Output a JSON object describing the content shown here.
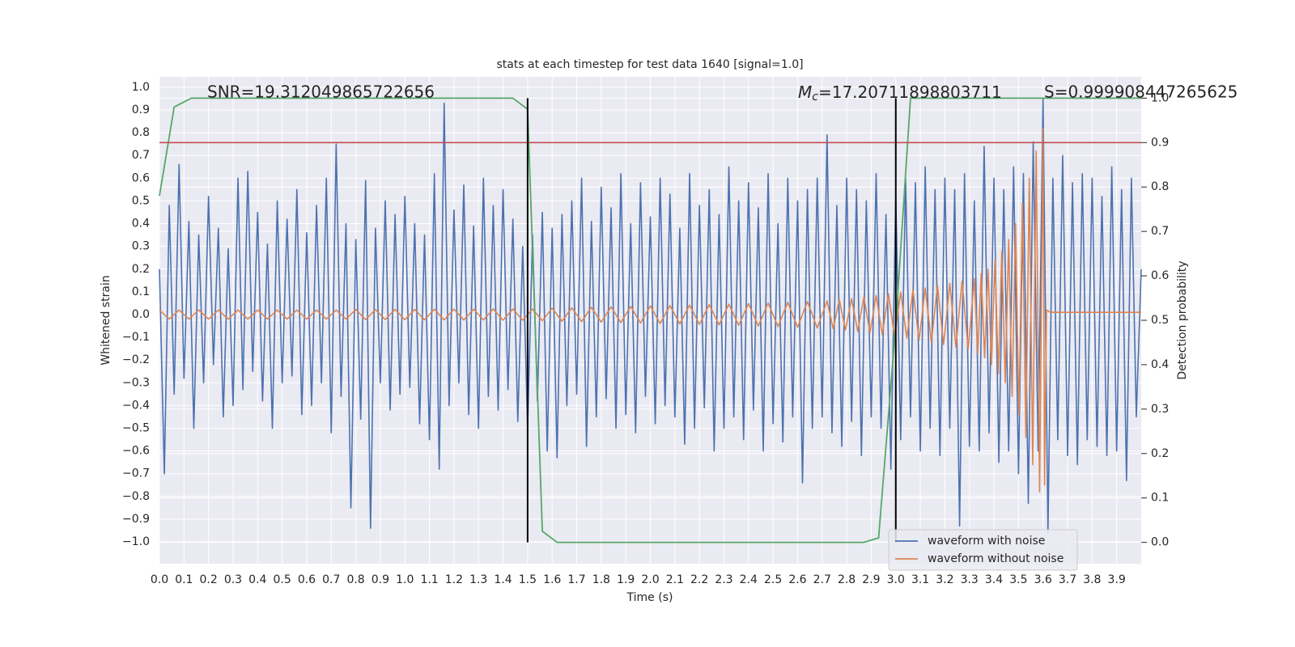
{
  "chart_data": {
    "type": "line",
    "title": "stats at each timestep for test data 1640 [signal=1.0]",
    "xlabel": "Time (s)",
    "ylabel": "Whitened strain",
    "y2label": "Detection probability",
    "annotations": {
      "snr": "SNR=19.312049865722656",
      "mc": {
        "symbol": "M",
        "sub": "c",
        "text": "=17.20711898803711"
      },
      "s": "S=0.999908447265625"
    },
    "xlim": [
      0,
      4
    ],
    "ylim": [
      -1.096,
      1.046
    ],
    "y2lim": [
      -0.048,
      1.048
    ],
    "grid": true,
    "legend": "lower right",
    "xticks": [
      {
        "value": 0,
        "label": "0.0"
      },
      0.1,
      0.2,
      0.3,
      0.4,
      0.5,
      0.6,
      0.7,
      0.8,
      0.9,
      {
        "value": 1,
        "label": "1.0"
      },
      1.1,
      1.2,
      1.3,
      1.4,
      1.5,
      1.6,
      1.7,
      1.8,
      1.9,
      {
        "value": 2,
        "label": "2.0"
      },
      2.1,
      2.2,
      2.3,
      2.4,
      2.5,
      2.6,
      2.7,
      2.8,
      2.9,
      {
        "value": 3,
        "label": "3.0"
      },
      3.1,
      3.2,
      3.3,
      3.4,
      3.5,
      3.6,
      3.7,
      3.8,
      3.9
    ],
    "yticks": [
      {
        "value": -1,
        "label": "−1.0"
      },
      {
        "value": -0.9,
        "label": "−0.9"
      },
      {
        "value": -0.8,
        "label": "−0.8"
      },
      {
        "value": -0.7,
        "label": "−0.7"
      },
      {
        "value": -0.6,
        "label": "−0.6"
      },
      {
        "value": -0.5,
        "label": "−0.5"
      },
      {
        "value": -0.4,
        "label": "−0.4"
      },
      {
        "value": -0.3,
        "label": "−0.3"
      },
      {
        "value": -0.2,
        "label": "−0.2"
      },
      {
        "value": -0.1,
        "label": "−0.1"
      },
      {
        "value": 0,
        "label": "0.0"
      },
      0.1,
      0.2,
      0.3,
      0.4,
      0.5,
      0.6,
      0.7,
      0.8,
      0.9,
      {
        "value": 1,
        "label": "1.0"
      }
    ],
    "y2ticks": [
      {
        "value": 0,
        "label": "0.0"
      },
      0.1,
      0.2,
      0.3,
      0.4,
      0.5,
      0.6,
      0.7,
      0.8,
      0.9,
      {
        "value": 1,
        "label": "1.0"
      }
    ],
    "series": [
      {
        "name": "waveform with noise",
        "color": "#4c72b0",
        "x": [
          0,
          0.02,
          0.04,
          0.06,
          0.08,
          0.1,
          0.12,
          0.14,
          0.16,
          0.18,
          0.2,
          0.22,
          0.24,
          0.26,
          0.28,
          0.3,
          0.32,
          0.34,
          0.36,
          0.38,
          0.4,
          0.42,
          0.44,
          0.46,
          0.48,
          0.5,
          0.52,
          0.54,
          0.56,
          0.58,
          0.6,
          0.62,
          0.64,
          0.66,
          0.68,
          0.7,
          0.72,
          0.74,
          0.76,
          0.78,
          0.8,
          0.82,
          0.84,
          0.86,
          0.88,
          0.9,
          0.92,
          0.94,
          0.96,
          0.98,
          1,
          1.02,
          1.04,
          1.06,
          1.08,
          1.1,
          1.12,
          1.14,
          1.16,
          1.18,
          1.2,
          1.22,
          1.24,
          1.26,
          1.28,
          1.3,
          1.32,
          1.34,
          1.36,
          1.38,
          1.4,
          1.42,
          1.44,
          1.46,
          1.48,
          1.5,
          1.52,
          1.54,
          1.56,
          1.58,
          1.6,
          1.62,
          1.64,
          1.66,
          1.68,
          1.7,
          1.72,
          1.74,
          1.76,
          1.78,
          1.8,
          1.82,
          1.84,
          1.86,
          1.88,
          1.9,
          1.92,
          1.94,
          1.96,
          1.98,
          2,
          2.02,
          2.04,
          2.06,
          2.08,
          2.1,
          2.12,
          2.14,
          2.16,
          2.18,
          2.2,
          2.22,
          2.24,
          2.26,
          2.28,
          2.3,
          2.32,
          2.34,
          2.36,
          2.38,
          2.4,
          2.42,
          2.44,
          2.46,
          2.48,
          2.5,
          2.52,
          2.54,
          2.56,
          2.58,
          2.6,
          2.62,
          2.64,
          2.66,
          2.68,
          2.7,
          2.72,
          2.74,
          2.76,
          2.78,
          2.8,
          2.82,
          2.84,
          2.86,
          2.88,
          2.9,
          2.92,
          2.94,
          2.96,
          2.98,
          3,
          3.02,
          3.04,
          3.06,
          3.08,
          3.1,
          3.12,
          3.14,
          3.16,
          3.18,
          3.2,
          3.22,
          3.24,
          3.26,
          3.28,
          3.3,
          3.32,
          3.34,
          3.36,
          3.38,
          3.4,
          3.42,
          3.44,
          3.46,
          3.48,
          3.5,
          3.52,
          3.54,
          3.56,
          3.58,
          3.6,
          3.62,
          3.64,
          3.66,
          3.68,
          3.7,
          3.72,
          3.74,
          3.76,
          3.78,
          3.8,
          3.82,
          3.84,
          3.86,
          3.88,
          3.9,
          3.92,
          3.94,
          3.96,
          3.98,
          4
        ],
        "values": [
          0.2,
          -0.7,
          0.48,
          -0.35,
          0.66,
          -0.28,
          0.41,
          -0.5,
          0.35,
          -0.3,
          0.52,
          -0.22,
          0.38,
          -0.45,
          0.29,
          -0.4,
          0.6,
          -0.33,
          0.63,
          -0.25,
          0.45,
          -0.38,
          0.31,
          -0.5,
          0.5,
          -0.3,
          0.42,
          -0.27,
          0.55,
          -0.44,
          0.36,
          -0.4,
          0.48,
          -0.3,
          0.6,
          -0.52,
          0.75,
          -0.36,
          0.4,
          -0.85,
          0.33,
          -0.46,
          0.59,
          -0.94,
          0.38,
          -0.3,
          0.5,
          -0.42,
          0.44,
          -0.35,
          0.52,
          -0.32,
          0.4,
          -0.48,
          0.35,
          -0.55,
          0.62,
          -0.68,
          0.93,
          -0.4,
          0.46,
          -0.3,
          0.57,
          -0.44,
          0.39,
          -0.5,
          0.6,
          -0.36,
          0.48,
          -0.42,
          0.55,
          -0.33,
          0.42,
          -0.47,
          0.3,
          -0.5,
          0.35,
          -0.38,
          0.45,
          -0.6,
          0.38,
          -0.63,
          0.44,
          -0.4,
          0.5,
          -0.35,
          0.6,
          -0.58,
          0.41,
          -0.45,
          0.56,
          -0.37,
          0.47,
          -0.5,
          0.62,
          -0.44,
          0.4,
          -0.52,
          0.58,
          -0.36,
          0.43,
          -0.48,
          0.6,
          -0.4,
          0.53,
          -0.45,
          0.38,
          -0.57,
          0.62,
          -0.5,
          0.48,
          -0.41,
          0.55,
          -0.6,
          0.44,
          -0.5,
          0.65,
          -0.45,
          0.5,
          -0.55,
          0.58,
          -0.42,
          0.47,
          -0.6,
          0.62,
          -0.48,
          0.4,
          -0.56,
          0.6,
          -0.45,
          0.5,
          -0.74,
          0.55,
          -0.5,
          0.6,
          -0.45,
          0.79,
          -0.52,
          0.48,
          -0.58,
          0.6,
          -0.47,
          0.55,
          -0.62,
          0.5,
          -0.45,
          0.62,
          -0.5,
          0.44,
          -0.68,
          0.52,
          -0.55,
          0.6,
          -0.45,
          0.58,
          -0.6,
          0.65,
          -0.5,
          0.55,
          -0.62,
          0.6,
          -0.5,
          0.55,
          -0.93,
          0.62,
          -0.58,
          0.5,
          -0.6,
          0.74,
          -0.52,
          0.6,
          -0.65,
          0.55,
          -0.6,
          0.65,
          -0.7,
          0.62,
          -0.83,
          0.76,
          -0.6,
          0.95,
          -0.96,
          0.6,
          -0.55,
          0.7,
          -0.62,
          0.58,
          -0.66,
          0.62,
          -0.55,
          0.6,
          -0.58,
          0.52,
          -0.62,
          0.65,
          -0.6,
          0.55,
          -0.73,
          0.6,
          -0.45,
          0.2
        ]
      },
      {
        "name": "waveform without noise",
        "color": "#dd8452",
        "x": [
          0,
          0.04,
          0.08,
          0.12,
          0.16,
          0.2,
          0.24,
          0.28,
          0.32,
          0.36,
          0.4,
          0.44,
          0.48,
          0.52,
          0.56,
          0.6,
          0.64,
          0.68,
          0.72,
          0.76,
          0.8,
          0.84,
          0.88,
          0.92,
          0.96,
          1,
          1.04,
          1.08,
          1.12,
          1.16,
          1.2,
          1.24,
          1.28,
          1.32,
          1.36,
          1.4,
          1.44,
          1.48,
          1.52,
          1.56,
          1.6,
          1.64,
          1.68,
          1.72,
          1.76,
          1.8,
          1.84,
          1.88,
          1.92,
          1.96,
          2,
          2.04,
          2.08,
          2.12,
          2.16,
          2.2,
          2.24,
          2.28,
          2.32,
          2.36,
          2.4,
          2.44,
          2.48,
          2.52,
          2.56,
          2.6,
          2.64,
          2.68,
          2.72,
          2.745,
          2.77,
          2.795,
          2.82,
          2.845,
          2.87,
          2.895,
          2.92,
          2.945,
          2.97,
          2.995,
          3.02,
          3.045,
          3.07,
          3.095,
          3.12,
          3.145,
          3.17,
          3.195,
          3.22,
          3.245,
          3.27,
          3.295,
          3.32,
          3.334,
          3.348,
          3.362,
          3.376,
          3.39,
          3.404,
          3.418,
          3.432,
          3.446,
          3.46,
          3.474,
          3.488,
          3.502,
          3.516,
          3.53,
          3.544,
          3.558,
          3.572,
          3.586,
          3.6,
          3.606,
          3.614,
          3.63,
          4
        ],
        "values": [
          0.02,
          -0.02,
          0.02,
          -0.02,
          0.02,
          -0.02,
          0.02,
          -0.02,
          0.02,
          -0.02,
          0.02,
          -0.02,
          0.02,
          -0.02,
          0.02,
          -0.02,
          0.02,
          -0.02,
          0.02,
          -0.02,
          0.022,
          -0.022,
          0.022,
          -0.022,
          0.023,
          -0.023,
          0.023,
          -0.023,
          0.024,
          -0.024,
          0.024,
          -0.024,
          0.024,
          -0.024,
          0.025,
          -0.025,
          0.025,
          -0.025,
          0.025,
          -0.027,
          0.028,
          -0.029,
          0.03,
          -0.031,
          0.032,
          -0.033,
          0.034,
          -0.035,
          0.036,
          -0.037,
          0.038,
          -0.039,
          0.04,
          -0.041,
          0.042,
          -0.043,
          0.044,
          -0.045,
          0.046,
          -0.047,
          0.048,
          -0.05,
          0.051,
          -0.053,
          0.054,
          -0.056,
          0.057,
          -0.059,
          0.06,
          -0.062,
          0.065,
          -0.068,
          0.071,
          -0.074,
          0.077,
          -0.08,
          0.084,
          -0.088,
          0.092,
          -0.096,
          0.1,
          -0.104,
          0.108,
          -0.112,
          0.117,
          -0.122,
          0.127,
          -0.132,
          0.137,
          -0.142,
          0.147,
          -0.152,
          0.157,
          -0.17,
          0.18,
          -0.19,
          0.2,
          -0.22,
          0.24,
          -0.26,
          0.28,
          -0.3,
          0.33,
          -0.36,
          0.4,
          -0.44,
          0.49,
          -0.54,
          0.6,
          -0.66,
          0.72,
          -0.78,
          0.82,
          -0.75,
          0.02,
          0.01,
          0.01
        ]
      }
    ],
    "detection": {
      "color": "#55a868",
      "axis": "y2",
      "x": [
        0,
        0.06,
        0.13,
        1.44,
        1.5,
        1.56,
        1.62,
        2.87,
        2.93,
        3,
        3.06,
        4
      ],
      "values": [
        0.78,
        0.98,
        1,
        1,
        0.975,
        0.025,
        0,
        0,
        0.01,
        0.49,
        1,
        1
      ]
    },
    "threshold": {
      "value": 0.9,
      "axis": "y2",
      "color": "#c44e52"
    },
    "vlines": {
      "x": [
        1.5,
        3
      ],
      "ymin": 0,
      "ymax": 1,
      "axis": "y2",
      "color": "#000000"
    }
  }
}
